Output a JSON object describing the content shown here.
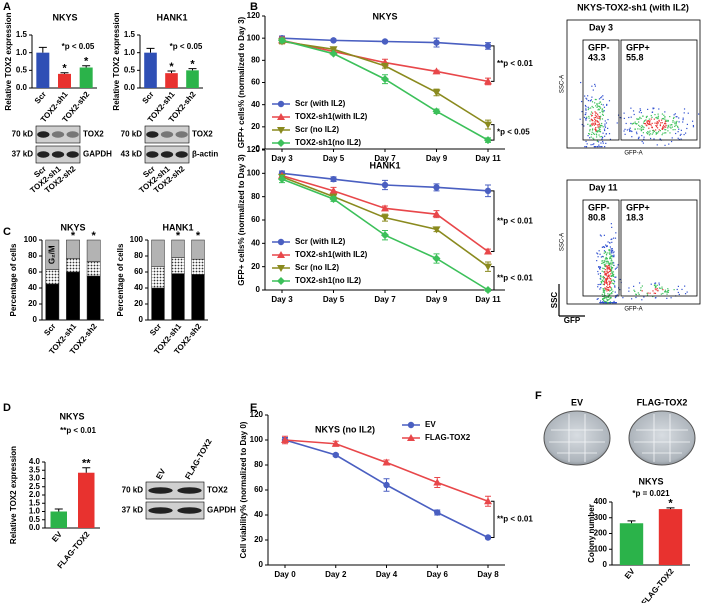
{
  "panel_labels": [
    "A",
    "B",
    "C",
    "D",
    "E",
    "F"
  ],
  "chart_data": [
    {
      "type": "bar",
      "title": "NKYS",
      "ylabel": "Relative TOX2 expression",
      "categories": [
        "Scr",
        "TOX2-sh1",
        "TOX2-sh2"
      ],
      "values": [
        1.0,
        0.4,
        0.58
      ],
      "errors": [
        0.15,
        0.03,
        0.05
      ],
      "colors": [
        "#2f4fb5",
        "#e8322f",
        "#2bb34a"
      ],
      "significance": [
        null,
        "*",
        "*"
      ],
      "annotation": "*p < 0.05",
      "ylim": [
        0,
        1.5
      ],
      "yticks": [
        {
          "value": 0,
          "label": "0.0"
        },
        0.5,
        {
          "value": 1,
          "label": "1.0"
        },
        1.5
      ]
    },
    {
      "type": "bar",
      "title": "HANK1",
      "ylabel": "Relative TOX2 expression",
      "categories": [
        "Scr",
        "TOX2-sh1",
        "TOX2-sh2"
      ],
      "values": [
        1.0,
        0.42,
        0.5
      ],
      "errors": [
        0.12,
        0.06,
        0.05
      ],
      "colors": [
        "#2f4fb5",
        "#e8322f",
        "#2bb34a"
      ],
      "significance": [
        null,
        "*",
        "*"
      ],
      "annotation": "*p < 0.05",
      "ylim": [
        0,
        1.5
      ],
      "yticks": [
        {
          "value": 0,
          "label": "0.0"
        },
        0.5,
        {
          "value": 1,
          "label": "1.0"
        },
        1.5
      ]
    },
    {
      "type": "line",
      "title": "NKYS",
      "ylabel": "GFP+ cells% (normalized to Day 3)",
      "categories": [
        "Day 3",
        "Day 5",
        "Day 7",
        "Day 9",
        "Day 11"
      ],
      "legend": "lower left",
      "series": [
        {
          "name": "Scr (with IL2)",
          "color": "#4a5fc1",
          "marker": "circle",
          "values": [
            100,
            98,
            97,
            96,
            93
          ],
          "errors": [
            2,
            1,
            1,
            4,
            3
          ]
        },
        {
          "name": "TOX2-sh1(with IL2)",
          "color": "#e8474a",
          "marker": "triangle",
          "values": [
            98,
            88,
            78,
            70,
            61
          ],
          "errors": [
            3,
            1,
            3,
            1,
            3
          ]
        },
        {
          "name": "Scr (no IL2)",
          "color": "#8a8a1e",
          "marker": "triangle-down",
          "values": [
            97,
            90,
            75,
            51,
            22
          ],
          "errors": [
            2,
            1,
            2,
            3,
            4
          ]
        },
        {
          "name": "TOX2-sh1(no IL2)",
          "color": "#3cc05a",
          "marker": "diamond",
          "values": [
            98,
            86,
            63,
            34,
            8
          ],
          "errors": [
            2,
            1,
            4,
            2,
            2
          ]
        }
      ],
      "annotations": [
        "**p < 0.01",
        "*p < 0.05"
      ],
      "ylim": [
        0,
        120
      ],
      "yticks": [
        0,
        20,
        40,
        60,
        80,
        100,
        120
      ]
    },
    {
      "type": "line",
      "title": "HANK1",
      "ylabel": "GFP+ cells% (normalized to Day 3)",
      "categories": [
        "Day 3",
        "Day 5",
        "Day 7",
        "Day 9",
        "Day 11"
      ],
      "legend": "lower left",
      "series": [
        {
          "name": "Scr (with IL2)",
          "color": "#4a5fc1",
          "marker": "circle",
          "values": [
            100,
            95,
            90,
            88,
            85
          ],
          "errors": [
            2,
            2,
            4,
            3,
            5
          ]
        },
        {
          "name": "TOX2-sh1(with IL2)",
          "color": "#e8474a",
          "marker": "triangle",
          "values": [
            98,
            85,
            70,
            65,
            33
          ],
          "errors": [
            1,
            3,
            2,
            3,
            2
          ]
        },
        {
          "name": "Scr (no IL2)",
          "color": "#8a8a1e",
          "marker": "triangle-down",
          "values": [
            97,
            80,
            62,
            52,
            20
          ],
          "errors": [
            2,
            2,
            3,
            2,
            4
          ]
        },
        {
          "name": "TOX2-sh1(no IL2)",
          "color": "#3cc05a",
          "marker": "diamond",
          "values": [
            95,
            78,
            47,
            27,
            0
          ],
          "errors": [
            3,
            2,
            4,
            4,
            1
          ]
        }
      ],
      "annotations": [
        "**p < 0.01",
        "**p < 0.01"
      ],
      "ylim": [
        0,
        120
      ],
      "yticks": [
        0,
        20,
        40,
        60,
        80,
        100,
        120
      ]
    },
    {
      "type": "stacked_bar",
      "title": "NKYS",
      "ylabel": "Percentage of cells",
      "categories": [
        "Scr",
        "TOX2-sh1",
        "TOX2-sh2"
      ],
      "series": [
        {
          "name": "G₀/G₁",
          "color": "#000000",
          "values": [
            45,
            60,
            55
          ]
        },
        {
          "color": "#ffffff",
          "pattern": "dots",
          "values": [
            18,
            17,
            18
          ]
        },
        {
          "name": "G₂/M",
          "color": "#b3b3b3",
          "values": [
            37,
            23,
            27
          ]
        }
      ],
      "significance": [
        null,
        "*",
        "*"
      ],
      "significance_color": "#e8322f",
      "ylim": [
        0,
        100
      ],
      "yticks": [
        0,
        20,
        40,
        60,
        80,
        100
      ]
    },
    {
      "type": "stacked_bar",
      "title": "HANK1",
      "ylabel": "Percentage of cells",
      "categories": [
        "Scr",
        "TOX2-sh1",
        "TOX2-sh2"
      ],
      "series": [
        {
          "color": "#000000",
          "values": [
            40,
            58,
            57
          ]
        },
        {
          "color": "#ffffff",
          "pattern": "dots",
          "values": [
            27,
            20,
            19
          ]
        },
        {
          "color": "#b3b3b3",
          "values": [
            33,
            22,
            24
          ]
        }
      ],
      "significance": [
        null,
        "*",
        "*"
      ],
      "significance_color": "#e8322f",
      "ylim": [
        0,
        100
      ],
      "yticks": [
        0,
        20,
        40,
        60,
        80,
        100
      ]
    },
    {
      "type": "bar",
      "title": "NKYS",
      "ylabel": "Relative TOX2 expression",
      "categories": [
        "EV",
        "FLAG-TOX2"
      ],
      "values": [
        1.0,
        3.35
      ],
      "errors": [
        0.15,
        0.3
      ],
      "colors": [
        "#2bb34a",
        "#e8322f"
      ],
      "significance": [
        null,
        "**"
      ],
      "annotation": "**p < 0.01",
      "ylim": [
        0,
        4
      ],
      "yticks": [
        {
          "value": 0,
          "label": "0.0"
        },
        0.5,
        {
          "value": 1,
          "label": "1.0"
        },
        1.5,
        {
          "value": 2,
          "label": "2.0"
        },
        2.5,
        {
          "value": 3,
          "label": "3.0"
        },
        3.5,
        {
          "value": 4,
          "label": "4.0"
        }
      ]
    },
    {
      "type": "line",
      "title": "NKYS (no IL2)",
      "ylabel": "Cell viability% (normalized to Day 0)",
      "categories": [
        "Day 0",
        "Day 2",
        "Day 4",
        "Day 6",
        "Day 8"
      ],
      "legend": "upper right",
      "series": [
        {
          "name": "EV",
          "color": "#4a5fc1",
          "marker": "circle",
          "values": [
            100,
            88,
            64,
            42,
            22
          ],
          "errors": [
            2,
            1,
            5,
            2,
            1
          ]
        },
        {
          "name": "FLAG-TOX2",
          "color": "#e8474a",
          "marker": "triangle",
          "values": [
            100,
            97,
            82,
            66,
            51
          ],
          "errors": [
            3,
            2,
            2,
            4,
            4
          ]
        }
      ],
      "annotations": [
        "**p < 0.01"
      ],
      "ylim": [
        0,
        120
      ],
      "yticks": [
        0,
        20,
        40,
        60,
        80,
        100,
        120
      ]
    },
    {
      "type": "bar",
      "title": "NKYS",
      "ylabel": "Colony number",
      "categories": [
        "EV",
        "FLAG-TOX2"
      ],
      "values": [
        265,
        355
      ],
      "errors": [
        15,
        8
      ],
      "colors": [
        "#2bb34a",
        "#e8322f"
      ],
      "significance": [
        null,
        "*"
      ],
      "annotation": "*p = 0.021",
      "ylim": [
        0,
        400
      ],
      "yticks": [
        0,
        100,
        200,
        300,
        400
      ]
    }
  ],
  "blots": [
    {
      "bands": [
        {
          "size": "70 kD",
          "label": "TOX2"
        },
        {
          "size": "37 kD",
          "label": "GAPDH"
        }
      ],
      "lanes": [
        "Scr",
        "TOX2-sh1",
        "TOX2-sh2"
      ]
    },
    {
      "bands": [
        {
          "size": "70 kD",
          "label": "TOX2"
        },
        {
          "size": "43 kD",
          "label": "β-actin"
        }
      ],
      "lanes": [
        "Scr",
        "TOX2-sh1",
        "TOX2-sh2"
      ]
    },
    {
      "bands": [
        {
          "size": "70 kD",
          "label": "TOX2"
        },
        {
          "size": "37 kD",
          "label": "GAPDH"
        }
      ],
      "lanes": [
        "EV",
        "FLAG-TOX2"
      ]
    }
  ],
  "flow": {
    "title": "NKYS-TOX2-sh1 (with IL2)",
    "xlabel": "GFP-A",
    "ylabel": "SSC-A",
    "corner_labels": [
      "SSC",
      "GFP"
    ],
    "plots": [
      {
        "day": "Day 3",
        "gates": [
          {
            "label": "GFP-",
            "percent": 43.3
          },
          {
            "label": "GFP+",
            "percent": 55.8
          }
        ]
      },
      {
        "day": "Day 11",
        "gates": [
          {
            "label": "GFP-",
            "percent": 80.8
          },
          {
            "label": "GFP+",
            "percent": 18.3
          }
        ]
      }
    ]
  },
  "plates": [
    "EV",
    "FLAG-TOX2"
  ]
}
